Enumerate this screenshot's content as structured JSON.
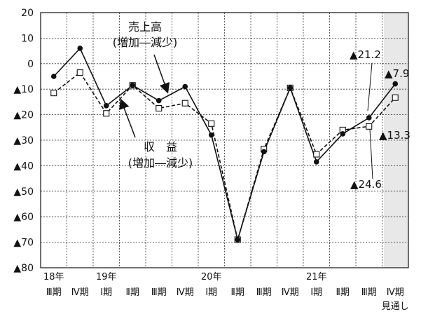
{
  "chart_data": {
    "type": "line",
    "ylim": [
      -80,
      20
    ],
    "yticks": [
      20,
      10,
      0,
      -10,
      -20,
      -30,
      -40,
      -50,
      -60,
      -70,
      -80
    ],
    "ytick_labels": [
      "20",
      "10",
      "0",
      "▲10",
      "▲20",
      "▲30",
      "▲40",
      "▲50",
      "▲60",
      "▲70",
      "▲80"
    ],
    "x": [
      "18年Ⅲ期",
      "18年Ⅳ期",
      "19年Ⅰ期",
      "19年Ⅱ期",
      "19年Ⅲ期",
      "19年Ⅳ期",
      "20年Ⅰ期",
      "20年Ⅱ期",
      "20年Ⅲ期",
      "20年Ⅳ期",
      "21年Ⅰ期",
      "21年Ⅱ期",
      "21年Ⅲ期",
      "21年Ⅳ期見通し"
    ],
    "year_labels": [
      {
        "index": 0,
        "text": "18年"
      },
      {
        "index": 2,
        "text": "19年"
      },
      {
        "index": 6,
        "text": "20年"
      },
      {
        "index": 10,
        "text": "21年"
      }
    ],
    "quarter_labels": [
      "Ⅲ期",
      "Ⅳ期",
      "Ⅰ期",
      "Ⅱ期",
      "Ⅲ期",
      "Ⅳ期",
      "Ⅰ期",
      "Ⅱ期",
      "Ⅲ期",
      "Ⅳ期",
      "Ⅰ期",
      "Ⅱ期",
      "Ⅲ期",
      "Ⅳ期"
    ],
    "forecast_label": "見通し",
    "shaded_last_period": true,
    "grid": true,
    "series": [
      {
        "name": "売上高(増加―減少)",
        "style": "solid",
        "marker": "filled-circle",
        "values": [
          -5,
          6,
          -16.5,
          -8.5,
          -14.5,
          -9,
          -28,
          -69,
          -34.5,
          -9.5,
          -38.5,
          -27.5,
          -21.2,
          -7.9
        ]
      },
      {
        "name": "収益(増加―減少)",
        "style": "dashed",
        "marker": "open-square",
        "values": [
          -11.5,
          -3.5,
          -19.5,
          -8.5,
          -17.5,
          -15.5,
          -23.5,
          -69,
          -33.5,
          -9.5,
          -35.5,
          -26,
          -24.6,
          -13.3
        ]
      }
    ],
    "annotations": {
      "sales_label_line1": "売上高",
      "sales_label_line2": "(増加―減少)",
      "profit_label_line1": "収　益",
      "profit_label_line2": "(増加―減少)",
      "value_sales_last": "▲7.9",
      "value_sales_prev": "▲21.2",
      "value_profit_last": "▲13.3",
      "value_profit_prev": "▲24.6"
    }
  }
}
